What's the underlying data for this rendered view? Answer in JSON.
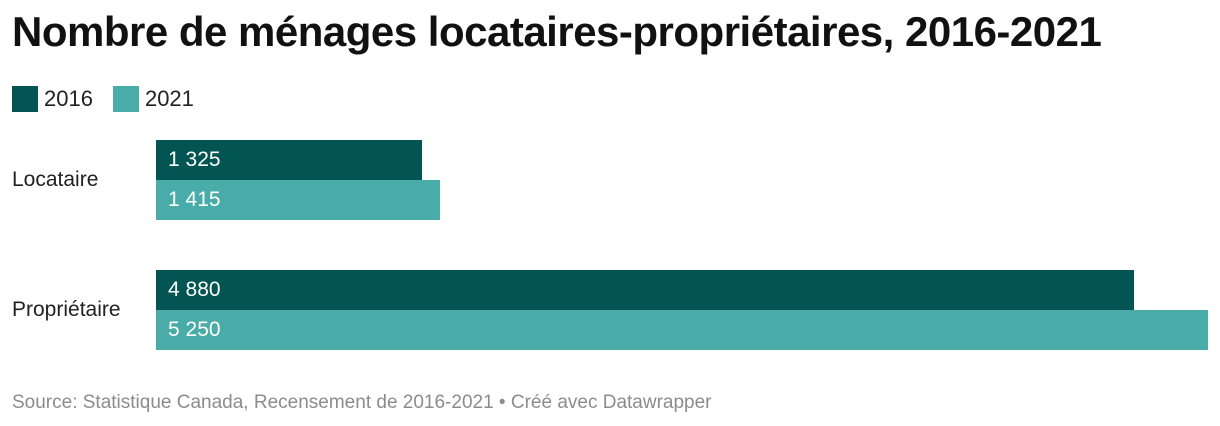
{
  "title": "Nombre de ménages locataires-propriétaires, 2016-2021",
  "source": "Source: Statistique Canada, Recensement de 2016-2021 • Créé avec Datawrapper",
  "colors": {
    "series_2016": "#035553",
    "series_2021": "#4aaca8"
  },
  "chart_data": {
    "type": "bar",
    "orientation": "horizontal",
    "title": "Nombre de ménages locataires-propriétaires, 2016-2021",
    "categories": [
      "Locataire",
      "Propriétaire"
    ],
    "series": [
      {
        "name": "2016",
        "values": [
          1325,
          4880
        ],
        "labels": [
          "1 325",
          "4 880"
        ],
        "color": "#035553"
      },
      {
        "name": "2021",
        "values": [
          1415,
          5250
        ],
        "labels": [
          "1 415",
          "5 250"
        ],
        "color": "#4aaca8"
      }
    ],
    "legend": "top-left",
    "grid": false
  }
}
